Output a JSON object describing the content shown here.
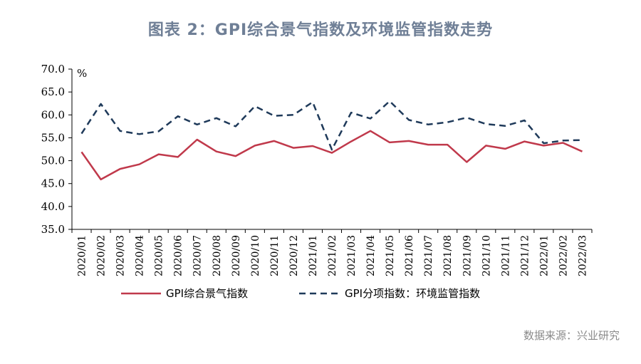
{
  "page": {
    "title": "图表 2：GPI综合景气指数及环境监管指数走势",
    "source": "数据来源：兴业研究"
  },
  "colors": {
    "series1": "#c0394b",
    "series2": "#1f3a5a",
    "axis": "#000000"
  },
  "chart_data": {
    "type": "line",
    "title": "图表 2：GPI综合景气指数及环境监管指数走势",
    "ylabel": "%",
    "xlabel": "",
    "ylim": [
      35.0,
      70.0
    ],
    "yticks": [
      "35.0",
      "40.0",
      "45.0",
      "50.0",
      "55.0",
      "60.0",
      "65.0",
      "70.0"
    ],
    "grid": false,
    "legend_position": "bottom",
    "categories": [
      "2020/01",
      "2020/02",
      "2020/03",
      "2020/04",
      "2020/05",
      "2020/06",
      "2020/07",
      "2020/08",
      "2020/09",
      "2020/10",
      "2020/11",
      "2020/12",
      "2021/01",
      "2021/02",
      "2021/03",
      "2021/04",
      "2021/05",
      "2021/06",
      "2021/07",
      "2021/08",
      "2021/09",
      "2021/10",
      "2021/11",
      "2021/12",
      "2022/01",
      "2022/02",
      "2022/03"
    ],
    "series": [
      {
        "name": "GPI综合景气指数",
        "style": "solid",
        "values": [
          51.9,
          45.9,
          48.2,
          49.2,
          51.4,
          50.8,
          54.6,
          52.0,
          51.0,
          53.3,
          54.3,
          52.8,
          53.2,
          51.7,
          54.2,
          56.5,
          54.0,
          54.3,
          53.5,
          53.5,
          49.7,
          53.3,
          52.6,
          54.2,
          53.3,
          53.9,
          52.0
        ]
      },
      {
        "name": "GPI分项指数：环境监管指数",
        "style": "dashed",
        "values": [
          55.9,
          62.4,
          56.5,
          55.8,
          56.4,
          59.7,
          57.9,
          59.3,
          57.5,
          61.9,
          59.8,
          60.0,
          62.8,
          52.4,
          60.5,
          59.2,
          63.0,
          58.9,
          57.9,
          58.4,
          59.4,
          58.0,
          57.6,
          58.8,
          53.8,
          54.4,
          54.5
        ]
      }
    ]
  }
}
